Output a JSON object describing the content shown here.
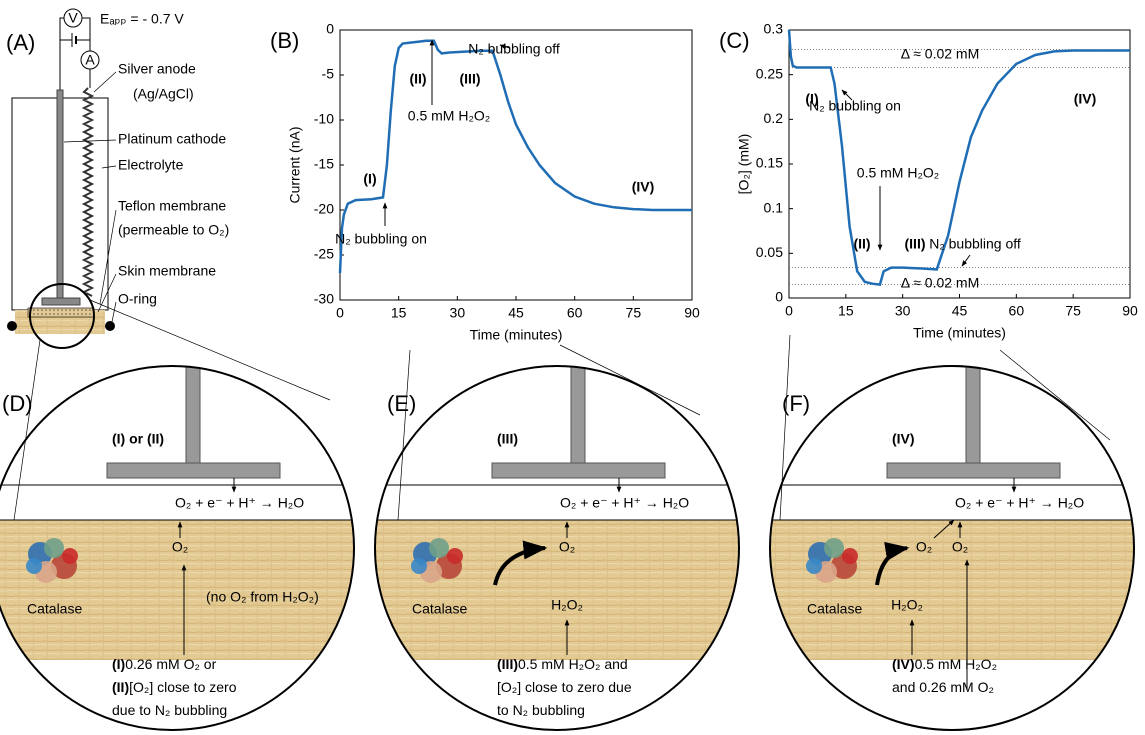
{
  "chart_data": [
    {
      "type": "line",
      "label": "(B)",
      "ylabel": "Current (nA)",
      "xlabel": "Time (minutes)",
      "color": "#1f6db5",
      "x": [
        0,
        0.5,
        1,
        2,
        4,
        8,
        11,
        12,
        13,
        14,
        15,
        16,
        18,
        20,
        22,
        24,
        25,
        26,
        28,
        32,
        36,
        39,
        41,
        43,
        45,
        48,
        51,
        55,
        60,
        65,
        70,
        75,
        80,
        85,
        90
      ],
      "values": [
        -27,
        -22,
        -20.5,
        -19.3,
        -18.9,
        -18.8,
        -18.6,
        -15,
        -9,
        -4,
        -2,
        -1.5,
        -1.4,
        -1.3,
        -1.2,
        -1.2,
        -2.2,
        -2.6,
        -2.5,
        -2.4,
        -2.3,
        -2.3,
        -5,
        -8,
        -10.5,
        -13,
        -15,
        -17,
        -18.5,
        -19.3,
        -19.7,
        -19.9,
        -20,
        -20,
        -20
      ],
      "xlim": [
        0,
        90
      ],
      "xticks": [
        0,
        15,
        30,
        45,
        60,
        75,
        90
      ],
      "ylim": [
        -30,
        0
      ],
      "yticks": [
        -30,
        -25,
        -20,
        -15,
        -10,
        -5,
        0
      ],
      "annotations": [
        "(I)",
        "(II)",
        "(III)",
        "(IV)",
        "0.5 mM H₂O₂",
        "N₂ bubbling on",
        "N₂ bubbling off"
      ]
    },
    {
      "type": "line",
      "label": "(C)",
      "ylabel": "[O₂] (mM)",
      "xlabel": "Time (minutes)",
      "color": "#1f6db5",
      "x": [
        0,
        0.5,
        1,
        2,
        5,
        8,
        11,
        12,
        14,
        16,
        18,
        20,
        22,
        24,
        25,
        27,
        30,
        35,
        39,
        42,
        45,
        48,
        51,
        55,
        60,
        65,
        70,
        75,
        80,
        90
      ],
      "values": [
        0.3,
        0.27,
        0.26,
        0.258,
        0.258,
        0.258,
        0.258,
        0.24,
        0.17,
        0.08,
        0.03,
        0.018,
        0.016,
        0.015,
        0.03,
        0.034,
        0.034,
        0.033,
        0.032,
        0.07,
        0.13,
        0.18,
        0.21,
        0.24,
        0.262,
        0.272,
        0.276,
        0.277,
        0.277,
        0.277
      ],
      "xlim": [
        0,
        90
      ],
      "xticks": [
        0,
        15,
        30,
        45,
        60,
        75,
        90
      ],
      "ylim": [
        0,
        0.3
      ],
      "yticks": [
        0,
        0.05,
        0.1,
        0.15,
        0.2,
        0.25,
        0.3
      ],
      "reference_lines": [
        0.278,
        0.258,
        0.034,
        0.015
      ],
      "annotations": [
        "(I)",
        "(II)",
        "(III)",
        "(IV)",
        "0.5 mM H₂O₂",
        "N₂ bubbling on",
        "N₂ bubbling off",
        "Δ ≈ 0.02 mM",
        "Δ ≈ 0.02 mM"
      ]
    }
  ],
  "panel_a": {
    "label": "(A)",
    "voltmeter": "V",
    "ammeter": "A",
    "voltage": "Eₐₚₚ = - 0.7 V",
    "parts": [
      "Silver anode",
      "(Ag/AgCl)",
      "Platinum cathode",
      "Electrolyte",
      "Teflon membrane",
      "(permeable to O₂)",
      "Skin membrane",
      "O-ring"
    ]
  },
  "panels": [
    {
      "label": "(D)",
      "stage": "(I) or (II)",
      "reaction": "O₂ + e⁻ + H⁺ → H₂O",
      "species": [
        "O₂"
      ],
      "note": "(no O₂ from H₂O₂)",
      "enzyme": "Catalase",
      "caption": [
        {
          "bold": "(I)",
          "text": "0.26 mM O₂ or"
        },
        {
          "bold": "(II)",
          "text": "[O₂] close to zero"
        },
        {
          "text": "due to N₂ bubbling"
        }
      ]
    },
    {
      "label": "(E)",
      "stage": "(III)",
      "reaction": "O₂ + e⁻ + H⁺ → H₂O",
      "species": [
        "O₂",
        "H₂O₂"
      ],
      "enzyme": "Catalase",
      "caption": [
        {
          "bold": "(III)",
          "text": "0.5 mM H₂O₂ and"
        },
        {
          "text": "[O₂] close to zero due"
        },
        {
          "text": "to N₂ bubbling"
        }
      ]
    },
    {
      "label": "(F)",
      "stage": "(IV)",
      "reaction": "O₂ + e⁻ + H⁺ → H₂O",
      "species": [
        "O₂",
        "O₂",
        "H₂O₂"
      ],
      "enzyme": "Catalase",
      "caption": [
        {
          "bold": "(IV)",
          "text": "0.5 mM H₂O₂"
        },
        {
          "text": "and 0.26 mM O₂"
        }
      ]
    }
  ]
}
